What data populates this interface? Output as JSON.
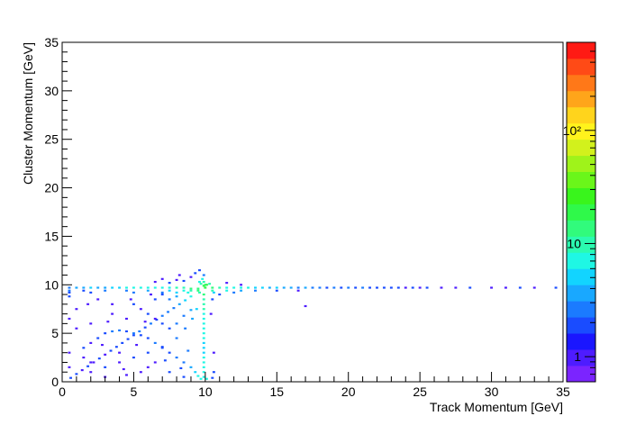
{
  "chart_data": {
    "type": "heatmap",
    "title": "",
    "xlabel": "Track Momentum [GeV]",
    "ylabel": "Cluster Momentum [GeV]",
    "xlim": [
      0,
      35
    ],
    "ylim": [
      0,
      35
    ],
    "x_ticks": [
      0,
      5,
      10,
      15,
      20,
      25,
      30,
      35
    ],
    "y_ticks": [
      0,
      5,
      10,
      15,
      20,
      25,
      30,
      35
    ],
    "colorbar": {
      "scale": "log",
      "range": [
        0.6,
        600
      ],
      "tick_labels": [
        "1",
        "10",
        "10²"
      ]
    },
    "palette": [
      "#7b24ff",
      "#4e1cff",
      "#1a16ff",
      "#1a4cff",
      "#1b7bff",
      "#19a8ff",
      "#12d4ff",
      "#1ff7e4",
      "#2bfbb0",
      "#31fb7c",
      "#2ff94a",
      "#39f51c",
      "#6af61a",
      "#9ff31a",
      "#d2f11c",
      "#fff31c",
      "#ffd41c",
      "#ffa51a",
      "#ff7818",
      "#ff4a16",
      "#ff1a14"
    ],
    "cells": [
      [
        0.5,
        9.7,
        3
      ],
      [
        1.0,
        9.7,
        4
      ],
      [
        1.5,
        9.7,
        4
      ],
      [
        2.0,
        9.7,
        5
      ],
      [
        2.5,
        9.7,
        4
      ],
      [
        3.0,
        9.7,
        4
      ],
      [
        3.5,
        9.7,
        5
      ],
      [
        4.0,
        9.7,
        5
      ],
      [
        4.5,
        9.7,
        6
      ],
      [
        5.0,
        9.7,
        6
      ],
      [
        5.5,
        9.7,
        7
      ],
      [
        6.0,
        9.7,
        7
      ],
      [
        6.5,
        9.7,
        7
      ],
      [
        7.0,
        9.7,
        8
      ],
      [
        7.5,
        9.7,
        8
      ],
      [
        8.0,
        9.7,
        9
      ],
      [
        8.5,
        9.7,
        10
      ],
      [
        9.0,
        9.6,
        12
      ],
      [
        9.5,
        9.6,
        16
      ],
      [
        10.0,
        9.7,
        20
      ],
      [
        10.5,
        9.7,
        14
      ],
      [
        11.0,
        9.7,
        10
      ],
      [
        11.5,
        9.7,
        8
      ],
      [
        12.0,
        9.7,
        7
      ],
      [
        12.5,
        9.7,
        6
      ],
      [
        13.0,
        9.7,
        6
      ],
      [
        13.5,
        9.7,
        5
      ],
      [
        14.0,
        9.7,
        5
      ],
      [
        14.5,
        9.7,
        4
      ],
      [
        15.0,
        9.7,
        5
      ],
      [
        15.5,
        9.7,
        4
      ],
      [
        16.0,
        9.7,
        4
      ],
      [
        16.5,
        9.7,
        3
      ],
      [
        17.0,
        9.7,
        4
      ],
      [
        17.5,
        9.7,
        3
      ],
      [
        18.0,
        9.7,
        3
      ],
      [
        18.5,
        9.7,
        2
      ],
      [
        19.0,
        9.7,
        3
      ],
      [
        19.5,
        9.7,
        2
      ],
      [
        20.0,
        9.7,
        3
      ],
      [
        20.5,
        9.7,
        2
      ],
      [
        21.0,
        9.7,
        3
      ],
      [
        21.5,
        9.7,
        2
      ],
      [
        22.0,
        9.7,
        2
      ],
      [
        22.5,
        9.7,
        2
      ],
      [
        23.0,
        9.7,
        2
      ],
      [
        23.5,
        9.7,
        2
      ],
      [
        24.0,
        9.7,
        1
      ],
      [
        24.5,
        9.7,
        2
      ],
      [
        25.0,
        9.7,
        1
      ],
      [
        25.5,
        9.7,
        2
      ],
      [
        26.5,
        9.7,
        1
      ],
      [
        27.5,
        9.7,
        1
      ],
      [
        28.5,
        9.7,
        2
      ],
      [
        30.0,
        9.7,
        1
      ],
      [
        31.0,
        9.7,
        1
      ],
      [
        32.0,
        9.7,
        2
      ],
      [
        33.0,
        9.7,
        1
      ],
      [
        34.5,
        9.7,
        2
      ],
      [
        0.5,
        9.4,
        3
      ],
      [
        1.5,
        9.4,
        2
      ],
      [
        3.0,
        9.4,
        3
      ],
      [
        4.5,
        9.4,
        3
      ],
      [
        6.0,
        9.4,
        4
      ],
      [
        7.5,
        9.4,
        5
      ],
      [
        8.5,
        9.4,
        7
      ],
      [
        9.0,
        9.4,
        9
      ],
      [
        9.5,
        9.4,
        12
      ],
      [
        10.5,
        9.4,
        9
      ],
      [
        11.5,
        9.4,
        6
      ],
      [
        12.5,
        9.4,
        4
      ],
      [
        13.5,
        9.4,
        3
      ],
      [
        15.0,
        9.4,
        2
      ],
      [
        16.5,
        9.4,
        1
      ],
      [
        0.5,
        9.2,
        2
      ],
      [
        2.0,
        9.2,
        2
      ],
      [
        5.0,
        9.2,
        3
      ],
      [
        7.0,
        9.2,
        3
      ],
      [
        8.0,
        9.2,
        5
      ],
      [
        8.8,
        9.2,
        6
      ],
      [
        9.6,
        9.2,
        9
      ],
      [
        10.6,
        9.2,
        5
      ],
      [
        12.0,
        9.2,
        3
      ],
      [
        9.9,
        11.0,
        3
      ],
      [
        9.8,
        10.6,
        6
      ],
      [
        9.9,
        10.3,
        9
      ],
      [
        9.6,
        10.3,
        8
      ],
      [
        10.0,
        10.0,
        14
      ],
      [
        9.9,
        9.9,
        20
      ],
      [
        10.1,
        10.0,
        18
      ],
      [
        9.7,
        10.1,
        11
      ],
      [
        10.3,
        10.1,
        9
      ],
      [
        9.9,
        9.0,
        12
      ],
      [
        9.9,
        8.5,
        11
      ],
      [
        9.9,
        8.0,
        10
      ],
      [
        9.9,
        7.5,
        9
      ],
      [
        9.9,
        7.0,
        8
      ],
      [
        9.9,
        6.5,
        7
      ],
      [
        9.9,
        6.0,
        7
      ],
      [
        9.9,
        5.5,
        6
      ],
      [
        9.9,
        5.0,
        6
      ],
      [
        9.9,
        4.5,
        6
      ],
      [
        9.9,
        4.0,
        5
      ],
      [
        9.9,
        3.5,
        5
      ],
      [
        9.9,
        3.0,
        5
      ],
      [
        9.9,
        2.5,
        6
      ],
      [
        9.9,
        2.0,
        6
      ],
      [
        9.9,
        1.5,
        6
      ],
      [
        9.9,
        1.0,
        7
      ],
      [
        9.9,
        0.5,
        8
      ],
      [
        9.7,
        0.3,
        7
      ],
      [
        10.1,
        0.3,
        8
      ],
      [
        9.0,
        8.8,
        6
      ],
      [
        8.6,
        8.4,
        5
      ],
      [
        8.2,
        8.0,
        4
      ],
      [
        7.8,
        7.6,
        3
      ],
      [
        7.4,
        7.2,
        3
      ],
      [
        7.0,
        6.8,
        3
      ],
      [
        6.6,
        6.4,
        2
      ],
      [
        6.2,
        6.0,
        3
      ],
      [
        5.8,
        5.6,
        2
      ],
      [
        5.4,
        5.2,
        3
      ],
      [
        5.0,
        4.8,
        2
      ],
      [
        4.6,
        4.4,
        2
      ],
      [
        4.2,
        4.0,
        2
      ],
      [
        3.8,
        3.6,
        2
      ],
      [
        3.4,
        3.2,
        2
      ],
      [
        3.0,
        2.8,
        1
      ],
      [
        2.6,
        2.4,
        2
      ],
      [
        2.2,
        2.0,
        1
      ],
      [
        1.8,
        1.6,
        2
      ],
      [
        1.4,
        1.2,
        1
      ],
      [
        1.0,
        0.8,
        2
      ],
      [
        0.6,
        0.4,
        2
      ],
      [
        1.5,
        3.5,
        2
      ],
      [
        2.0,
        4.0,
        1
      ],
      [
        2.5,
        4.5,
        2
      ],
      [
        3.0,
        5.0,
        2
      ],
      [
        3.5,
        5.2,
        3
      ],
      [
        4.0,
        5.3,
        3
      ],
      [
        4.5,
        5.2,
        2
      ],
      [
        5.0,
        5.0,
        3
      ],
      [
        5.5,
        4.8,
        2
      ],
      [
        6.0,
        4.5,
        2
      ],
      [
        6.5,
        4.0,
        3
      ],
      [
        7.0,
        3.5,
        2
      ],
      [
        7.5,
        3.0,
        2
      ],
      [
        8.0,
        2.5,
        3
      ],
      [
        8.5,
        2.0,
        3
      ],
      [
        9.0,
        1.5,
        4
      ],
      [
        9.3,
        1.0,
        5
      ],
      [
        9.5,
        0.6,
        6
      ],
      [
        2.0,
        1.0,
        1
      ],
      [
        3.0,
        1.5,
        2
      ],
      [
        4.0,
        2.0,
        1
      ],
      [
        5.0,
        2.5,
        2
      ],
      [
        6.0,
        3.0,
        2
      ],
      [
        7.0,
        3.6,
        2
      ],
      [
        8.0,
        4.5,
        3
      ],
      [
        8.6,
        5.5,
        3
      ],
      [
        9.1,
        6.5,
        4
      ],
      [
        9.4,
        7.5,
        5
      ],
      [
        5.0,
        8.0,
        2
      ],
      [
        5.5,
        7.5,
        1
      ],
      [
        6.0,
        7.0,
        2
      ],
      [
        6.5,
        6.5,
        1
      ],
      [
        7.0,
        6.0,
        2
      ],
      [
        7.5,
        5.5,
        2
      ],
      [
        8.0,
        6.0,
        3
      ],
      [
        8.5,
        6.8,
        3
      ],
      [
        9.0,
        7.4,
        4
      ],
      [
        6.5,
        8.5,
        2
      ],
      [
        7.5,
        8.5,
        3
      ],
      [
        8.0,
        8.8,
        4
      ],
      [
        7.0,
        9.0,
        2
      ],
      [
        6.5,
        10.3,
        1
      ],
      [
        7.0,
        10.6,
        1
      ],
      [
        7.5,
        10.2,
        2
      ],
      [
        8.0,
        10.5,
        1
      ],
      [
        8.5,
        10.4,
        2
      ],
      [
        9.0,
        10.8,
        1
      ],
      [
        8.2,
        11.0,
        1
      ],
      [
        9.3,
        11.2,
        2
      ],
      [
        9.6,
        11.5,
        2
      ],
      [
        1.0,
        7.5,
        1
      ],
      [
        2.5,
        8.5,
        1
      ],
      [
        3.5,
        7.0,
        1
      ],
      [
        4.5,
        6.5,
        1
      ],
      [
        2.0,
        6.0,
        1
      ],
      [
        1.0,
        5.5,
        1
      ],
      [
        0.5,
        6.5,
        1
      ],
      [
        1.5,
        2.5,
        1
      ],
      [
        3.0,
        0.5,
        1
      ],
      [
        4.5,
        0.7,
        1
      ],
      [
        6.0,
        1.5,
        1
      ],
      [
        7.5,
        1.0,
        2
      ],
      [
        8.5,
        0.5,
        2
      ],
      [
        6.5,
        2.0,
        1
      ],
      [
        5.5,
        1.0,
        1
      ],
      [
        3.5,
        8.0,
        1
      ],
      [
        4.8,
        8.5,
        1
      ],
      [
        6.2,
        9.0,
        1
      ],
      [
        10.5,
        8.5,
        2
      ],
      [
        11.0,
        9.0,
        2
      ],
      [
        10.4,
        7.0,
        1
      ],
      [
        10.6,
        3.0,
        1
      ],
      [
        10.6,
        1.0,
        2
      ],
      [
        10.5,
        0.4,
        2
      ],
      [
        11.5,
        10.2,
        1
      ],
      [
        12.5,
        10.0,
        1
      ],
      [
        17.0,
        7.8,
        1
      ],
      [
        0.5,
        8.8,
        2
      ],
      [
        0.5,
        3.0,
        1
      ],
      [
        0.5,
        1.5,
        1
      ],
      [
        2.0,
        2.0,
        1
      ],
      [
        2.8,
        3.8,
        1
      ],
      [
        4.0,
        3.0,
        1
      ],
      [
        5.2,
        3.8,
        1
      ],
      [
        5.8,
        6.2,
        1
      ],
      [
        3.2,
        6.2,
        1
      ],
      [
        1.8,
        8.0,
        1
      ],
      [
        7.2,
        2.2,
        2
      ],
      [
        8.8,
        3.2,
        3
      ],
      [
        8.3,
        1.4,
        2
      ],
      [
        4.3,
        1.3,
        1
      ]
    ]
  }
}
